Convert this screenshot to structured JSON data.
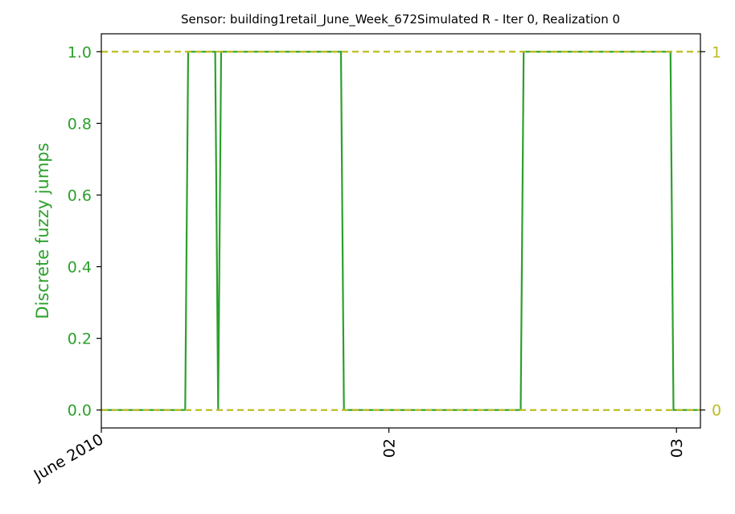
{
  "chart_data": {
    "type": "line",
    "title": "Sensor: building1retail_June_Week_672Simulated R - Iter 0, Realization 0",
    "ylabel": "Discrete fuzzy jumps",
    "ylim": [
      -0.05,
      1.05
    ],
    "xlim": [
      "2010-06-01 00:00",
      "2010-06-03 02:00"
    ],
    "yticks": [
      "0.0",
      "0.2",
      "0.4",
      "0.6",
      "0.8",
      "1.0"
    ],
    "right_yticks": [
      "0",
      "1"
    ],
    "xticks": [
      {
        "at": "2010-06-01 00:00",
        "label": "June 2010",
        "rotation": 30
      },
      {
        "at": "2010-06-02 00:00",
        "label": "02",
        "rotation": 90
      },
      {
        "at": "2010-06-03 00:00",
        "label": "03",
        "rotation": 90
      }
    ],
    "reference_lines": [
      0,
      1
    ],
    "series": [
      {
        "x": [
          "2010-06-01 00:00",
          "2010-06-01 07:00",
          "2010-06-01 07:15",
          "2010-06-01 09:30",
          "2010-06-01 09:45",
          "2010-06-01 10:00",
          "2010-06-01 20:00",
          "2010-06-01 20:15",
          "2010-06-02 11:00",
          "2010-06-02 11:15",
          "2010-06-02 23:30",
          "2010-06-02 23:45",
          "2010-06-03 02:00"
        ],
        "values": [
          0,
          0,
          1,
          1,
          0,
          1,
          1,
          0,
          0,
          1,
          1,
          0,
          0
        ]
      }
    ],
    "colors": {
      "line": "#2ca02c",
      "reference": "#bcbd22",
      "left_axis": "#2ca02c",
      "right_axis": "#bcbd22"
    },
    "grid": false,
    "legend": "none"
  }
}
